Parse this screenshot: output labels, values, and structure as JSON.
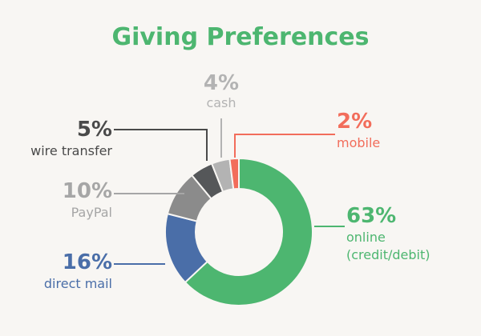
{
  "chart_data": {
    "type": "pie",
    "donut": true,
    "title": "Giving Preferences",
    "start_angle_deg": 0,
    "direction": "clockwise",
    "slices": [
      {
        "id": "online",
        "value": 63,
        "percent_label": "63%",
        "label_lines": [
          "online",
          "(credit/debit)"
        ],
        "color": "#4db670",
        "label_color": "#4db670"
      },
      {
        "id": "direct-mail",
        "value": 16,
        "percent_label": "16%",
        "label_lines": [
          "direct mail"
        ],
        "color": "#4a6ea8",
        "label_color": "#4a6ea8"
      },
      {
        "id": "paypal",
        "value": 10,
        "percent_label": "10%",
        "label_lines": [
          "PayPal"
        ],
        "color": "#8b8b8b",
        "label_color": "#a6a6a6"
      },
      {
        "id": "wire-transfer",
        "value": 5,
        "percent_label": "5%",
        "label_lines": [
          "wire transfer"
        ],
        "color": "#555759",
        "label_color": "#4a4a4a"
      },
      {
        "id": "cash",
        "value": 4,
        "percent_label": "4%",
        "label_lines": [
          "cash"
        ],
        "color": "#b3b3b3",
        "label_color": "#b3b3b3"
      },
      {
        "id": "mobile",
        "value": 2,
        "percent_label": "2%",
        "label_lines": [
          "mobile"
        ],
        "color": "#f26d5b",
        "label_color": "#f26d5b"
      }
    ]
  },
  "colors": {
    "background": "#f8f6f3",
    "title": "#4db670",
    "slice_gap": "#f8f6f3"
  }
}
